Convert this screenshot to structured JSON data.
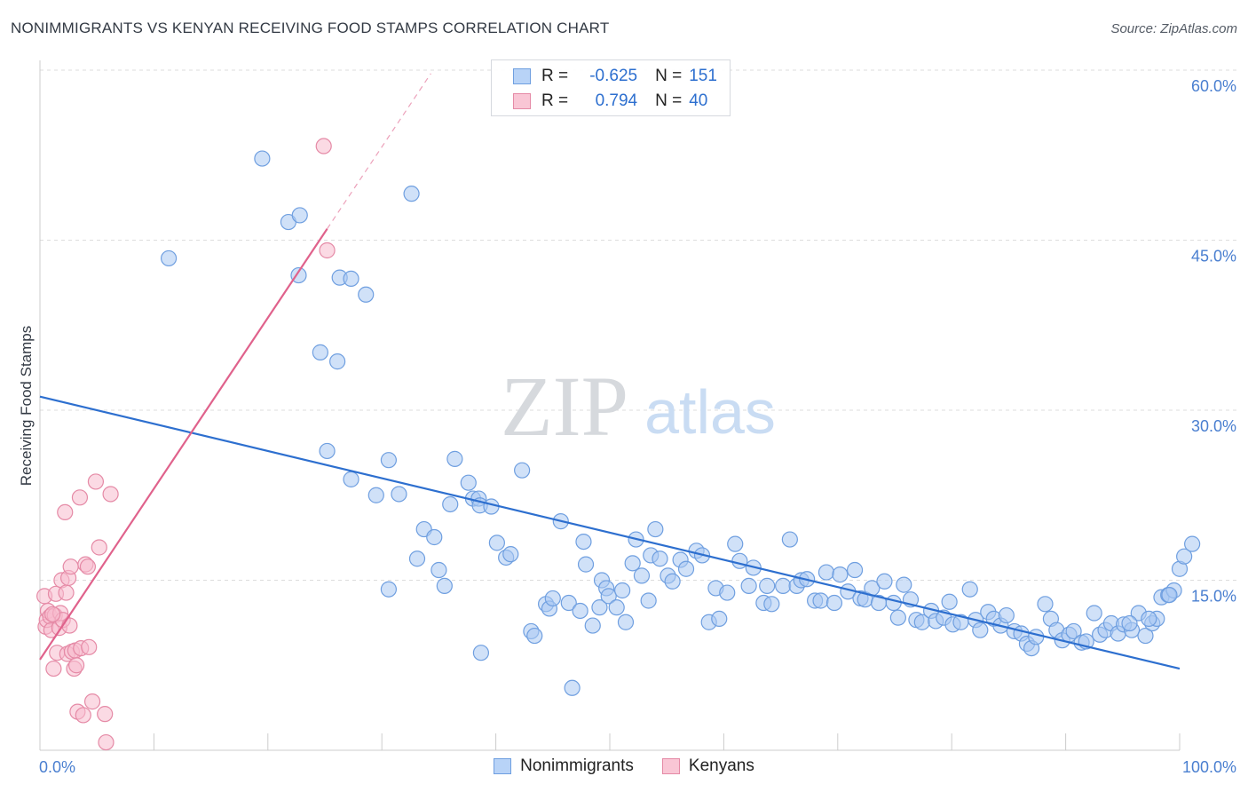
{
  "title": "NONIMMIGRANTS VS KENYAN RECEIVING FOOD STAMPS CORRELATION CHART",
  "source": "Source: ZipAtlas.com",
  "watermark": {
    "zip": "ZIP",
    "atlas": "atlas"
  },
  "stats": [
    {
      "r_label": "R =",
      "r_value": "-0.625",
      "n_label": "N =",
      "n_value": "151"
    },
    {
      "r_label": "R =",
      "r_value": "0.794",
      "n_label": "N =",
      "n_value": "40"
    }
  ],
  "legend": {
    "nonimmigrants": "Nonimmigrants",
    "kenyans": "Kenyans"
  },
  "colors": {
    "blue_fill": "#aac8f2",
    "blue_stroke": "#6f9fe0",
    "blue_line": "#2d6fcf",
    "pink_fill": "#f7bccd",
    "pink_stroke": "#e58aa6",
    "pink_line": "#e0628c",
    "tick_label": "#4a7fd0",
    "grid": "#dddddd"
  },
  "chart_data": {
    "type": "scatter",
    "title": "NONIMMIGRANTS VS KENYAN RECEIVING FOOD STAMPS CORRELATION CHART",
    "xlabel": "",
    "ylabel": "Receiving Food Stamps",
    "xlim": [
      0,
      100
    ],
    "ylim": [
      0,
      60
    ],
    "x_tick_labels": [
      "0.0%",
      "100.0%"
    ],
    "y_ticks": [
      15,
      30,
      45,
      60
    ],
    "y_tick_labels": [
      "15.0%",
      "30.0%",
      "45.0%",
      "60.0%"
    ],
    "grid": true,
    "legend_position": "bottom",
    "series": [
      {
        "name": "Nonimmigrants",
        "color": "#aac8f2",
        "trend": {
          "x": [
            0,
            100
          ],
          "y": [
            31.2,
            7.2
          ]
        },
        "points": [
          [
            11.3,
            43.4
          ],
          [
            19.5,
            52.2
          ],
          [
            21.8,
            46.6
          ],
          [
            22.8,
            47.2
          ],
          [
            32.6,
            49.1
          ],
          [
            22.7,
            41.9
          ],
          [
            26.3,
            41.7
          ],
          [
            27.3,
            41.6
          ],
          [
            28.6,
            40.2
          ],
          [
            24.6,
            35.1
          ],
          [
            26.1,
            34.3
          ],
          [
            25.2,
            26.4
          ],
          [
            27.3,
            23.9
          ],
          [
            29.5,
            22.5
          ],
          [
            30.6,
            14.2
          ],
          [
            30.6,
            25.6
          ],
          [
            31.5,
            22.6
          ],
          [
            33.7,
            19.5
          ],
          [
            33.1,
            16.9
          ],
          [
            34.6,
            18.8
          ],
          [
            35.0,
            15.9
          ],
          [
            35.5,
            14.5
          ],
          [
            36.0,
            21.7
          ],
          [
            36.4,
            25.7
          ],
          [
            37.6,
            23.6
          ],
          [
            38.0,
            22.2
          ],
          [
            38.5,
            22.2
          ],
          [
            38.6,
            21.6
          ],
          [
            39.6,
            21.5
          ],
          [
            38.7,
            8.6
          ],
          [
            40.1,
            18.3
          ],
          [
            40.9,
            17.0
          ],
          [
            41.3,
            17.3
          ],
          [
            42.3,
            24.7
          ],
          [
            43.1,
            10.5
          ],
          [
            43.4,
            10.1
          ],
          [
            44.4,
            12.9
          ],
          [
            44.7,
            12.5
          ],
          [
            45.0,
            13.4
          ],
          [
            45.7,
            20.2
          ],
          [
            46.4,
            13.0
          ],
          [
            46.7,
            5.5
          ],
          [
            47.4,
            12.3
          ],
          [
            47.7,
            18.4
          ],
          [
            47.9,
            16.4
          ],
          [
            48.5,
            11.0
          ],
          [
            49.1,
            12.6
          ],
          [
            49.3,
            15.0
          ],
          [
            49.7,
            14.3
          ],
          [
            49.9,
            13.6
          ],
          [
            50.6,
            12.6
          ],
          [
            51.1,
            14.1
          ],
          [
            51.4,
            11.3
          ],
          [
            52.0,
            16.5
          ],
          [
            52.3,
            18.6
          ],
          [
            52.8,
            15.4
          ],
          [
            53.4,
            13.2
          ],
          [
            53.6,
            17.2
          ],
          [
            54.0,
            19.5
          ],
          [
            54.4,
            16.9
          ],
          [
            55.1,
            15.4
          ],
          [
            55.5,
            14.9
          ],
          [
            56.2,
            16.8
          ],
          [
            56.7,
            16.0
          ],
          [
            57.6,
            17.6
          ],
          [
            58.1,
            17.2
          ],
          [
            58.7,
            11.3
          ],
          [
            59.3,
            14.3
          ],
          [
            59.6,
            11.6
          ],
          [
            60.3,
            13.9
          ],
          [
            61.0,
            18.2
          ],
          [
            61.4,
            16.7
          ],
          [
            62.2,
            14.5
          ],
          [
            62.6,
            16.1
          ],
          [
            63.5,
            13.0
          ],
          [
            63.8,
            14.5
          ],
          [
            64.2,
            12.9
          ],
          [
            65.2,
            14.5
          ],
          [
            65.8,
            18.6
          ],
          [
            66.4,
            14.5
          ],
          [
            66.8,
            15.0
          ],
          [
            67.3,
            15.1
          ],
          [
            68.0,
            13.2
          ],
          [
            68.5,
            13.2
          ],
          [
            69.0,
            15.7
          ],
          [
            69.7,
            13.0
          ],
          [
            70.2,
            15.5
          ],
          [
            70.9,
            14.0
          ],
          [
            71.5,
            15.9
          ],
          [
            72.0,
            13.4
          ],
          [
            72.4,
            13.3
          ],
          [
            73.0,
            14.3
          ],
          [
            73.6,
            13.0
          ],
          [
            74.1,
            14.9
          ],
          [
            74.9,
            13.0
          ],
          [
            75.3,
            11.7
          ],
          [
            75.8,
            14.6
          ],
          [
            76.4,
            13.3
          ],
          [
            76.9,
            11.5
          ],
          [
            77.4,
            11.3
          ],
          [
            78.2,
            12.3
          ],
          [
            78.6,
            11.4
          ],
          [
            79.3,
            11.7
          ],
          [
            79.8,
            13.1
          ],
          [
            80.1,
            11.1
          ],
          [
            80.8,
            11.3
          ],
          [
            81.6,
            14.2
          ],
          [
            82.1,
            11.5
          ],
          [
            82.5,
            10.6
          ],
          [
            83.2,
            12.2
          ],
          [
            83.7,
            11.6
          ],
          [
            84.3,
            11.0
          ],
          [
            84.8,
            11.9
          ],
          [
            85.5,
            10.5
          ],
          [
            86.1,
            10.3
          ],
          [
            86.6,
            9.4
          ],
          [
            87.0,
            9.0
          ],
          [
            87.4,
            10.0
          ],
          [
            88.2,
            12.9
          ],
          [
            88.7,
            11.6
          ],
          [
            89.2,
            10.6
          ],
          [
            89.7,
            9.7
          ],
          [
            90.3,
            10.2
          ],
          [
            90.7,
            10.5
          ],
          [
            91.4,
            9.5
          ],
          [
            91.8,
            9.6
          ],
          [
            92.5,
            12.1
          ],
          [
            93.0,
            10.2
          ],
          [
            93.5,
            10.6
          ],
          [
            94.0,
            11.2
          ],
          [
            94.6,
            10.3
          ],
          [
            95.1,
            11.1
          ],
          [
            95.8,
            10.6
          ],
          [
            96.4,
            12.1
          ],
          [
            97.0,
            10.1
          ],
          [
            97.6,
            11.2
          ],
          [
            98.0,
            11.6
          ],
          [
            98.4,
            13.5
          ],
          [
            99.0,
            13.7
          ],
          [
            99.5,
            14.1
          ],
          [
            100.0,
            16.0
          ],
          [
            100.4,
            17.1
          ],
          [
            101.1,
            18.2
          ],
          [
            99.1,
            13.7
          ],
          [
            97.3,
            11.6
          ],
          [
            95.6,
            11.2
          ]
        ]
      },
      {
        "name": "Kenyans",
        "color": "#f7bccd",
        "trend": {
          "x": [
            0,
            25.2
          ],
          "y": [
            8.0,
            46.0
          ]
        },
        "trend_dashed": {
          "x": [
            25.2,
            34.3
          ],
          "y": [
            46.0,
            59.7
          ]
        },
        "points": [
          [
            0.4,
            13.6
          ],
          [
            0.5,
            10.9
          ],
          [
            0.6,
            11.5
          ],
          [
            0.7,
            12.3
          ],
          [
            0.9,
            11.8
          ],
          [
            1.0,
            10.6
          ],
          [
            1.2,
            7.2
          ],
          [
            1.3,
            11.9
          ],
          [
            1.4,
            13.8
          ],
          [
            1.5,
            8.6
          ],
          [
            1.7,
            10.8
          ],
          [
            1.8,
            12.1
          ],
          [
            1.9,
            15.0
          ],
          [
            2.0,
            11.5
          ],
          [
            2.2,
            21.0
          ],
          [
            2.3,
            13.9
          ],
          [
            2.4,
            8.5
          ],
          [
            2.5,
            15.2
          ],
          [
            2.6,
            11.0
          ],
          [
            2.7,
            16.2
          ],
          [
            2.8,
            8.7
          ],
          [
            3.0,
            7.2
          ],
          [
            3.1,
            8.8
          ],
          [
            3.2,
            7.5
          ],
          [
            3.3,
            3.4
          ],
          [
            3.5,
            22.3
          ],
          [
            3.6,
            9.0
          ],
          [
            3.8,
            3.1
          ],
          [
            4.0,
            16.4
          ],
          [
            4.2,
            16.2
          ],
          [
            4.3,
            9.1
          ],
          [
            4.6,
            4.3
          ],
          [
            4.9,
            23.7
          ],
          [
            5.2,
            17.9
          ],
          [
            5.7,
            3.2
          ],
          [
            5.8,
            0.7
          ],
          [
            6.2,
            22.6
          ],
          [
            25.2,
            44.1
          ],
          [
            24.9,
            53.3
          ],
          [
            1.1,
            12.0
          ]
        ]
      }
    ]
  }
}
